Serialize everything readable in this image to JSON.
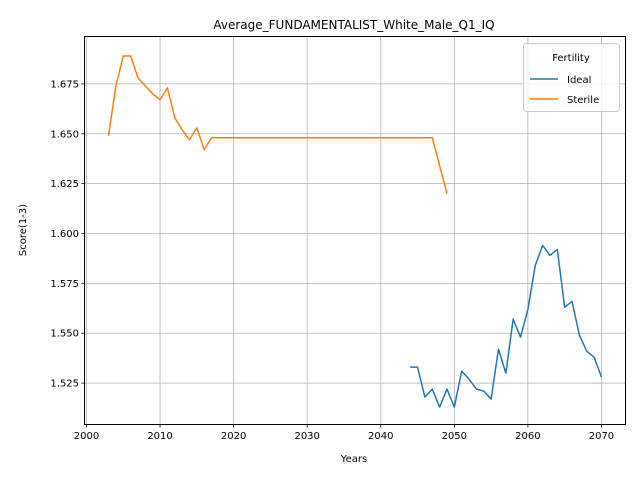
{
  "chart_data": {
    "type": "line",
    "title": "Average_FUNDAMENTALIST_White_Male_Q1_IQ",
    "xlabel": "Years",
    "ylabel": "Score(1-3)",
    "xlim": [
      1999.8,
      2073.2
    ],
    "ylim": [
      1.5045,
      1.6985
    ],
    "xticks": [
      2000,
      2010,
      2020,
      2030,
      2040,
      2050,
      2060,
      2070
    ],
    "xtick_labels": [
      "2000",
      "2010",
      "2020",
      "2030",
      "2040",
      "2050",
      "2060",
      "2070"
    ],
    "yticks": [
      1.525,
      1.55,
      1.575,
      1.6,
      1.625,
      1.65,
      1.675
    ],
    "ytick_labels": [
      "1.525",
      "1.550",
      "1.575",
      "1.600",
      "1.625",
      "1.650",
      "1.675"
    ],
    "grid": true,
    "legend": {
      "title": "Fertility",
      "placement": "top-right"
    },
    "series": [
      {
        "name": "Ideal",
        "color": "#1f77b4",
        "x": [
          2044,
          2045,
          2046,
          2047,
          2048,
          2049,
          2050,
          2051,
          2052,
          2053,
          2054,
          2055,
          2056,
          2057,
          2058,
          2059,
          2060,
          2061,
          2062,
          2063,
          2064,
          2065,
          2066,
          2067,
          2068,
          2069,
          2070
        ],
        "y": [
          1.533,
          1.533,
          1.518,
          1.522,
          1.513,
          1.522,
          1.513,
          1.531,
          1.527,
          1.522,
          1.521,
          1.517,
          1.542,
          1.53,
          1.557,
          1.548,
          1.562,
          1.584,
          1.594,
          1.589,
          1.592,
          1.563,
          1.566,
          1.549,
          1.541,
          1.538,
          1.528
        ]
      },
      {
        "name": "Sterile",
        "color": "#ff7f0e",
        "x": [
          2003,
          2004,
          2005,
          2006,
          2007,
          2008,
          2009,
          2010,
          2011,
          2012,
          2013,
          2014,
          2015,
          2016,
          2017,
          2018,
          2019,
          2020,
          2025,
          2030,
          2035,
          2040,
          2045,
          2046,
          2047,
          2048,
          2049
        ],
        "y": [
          1.649,
          1.674,
          1.689,
          1.689,
          1.678,
          1.674,
          1.67,
          1.667,
          1.673,
          1.658,
          1.652,
          1.647,
          1.653,
          1.642,
          1.648,
          1.648,
          1.648,
          1.648,
          1.648,
          1.648,
          1.648,
          1.648,
          1.648,
          1.648,
          1.648,
          1.634,
          1.62
        ]
      }
    ]
  }
}
